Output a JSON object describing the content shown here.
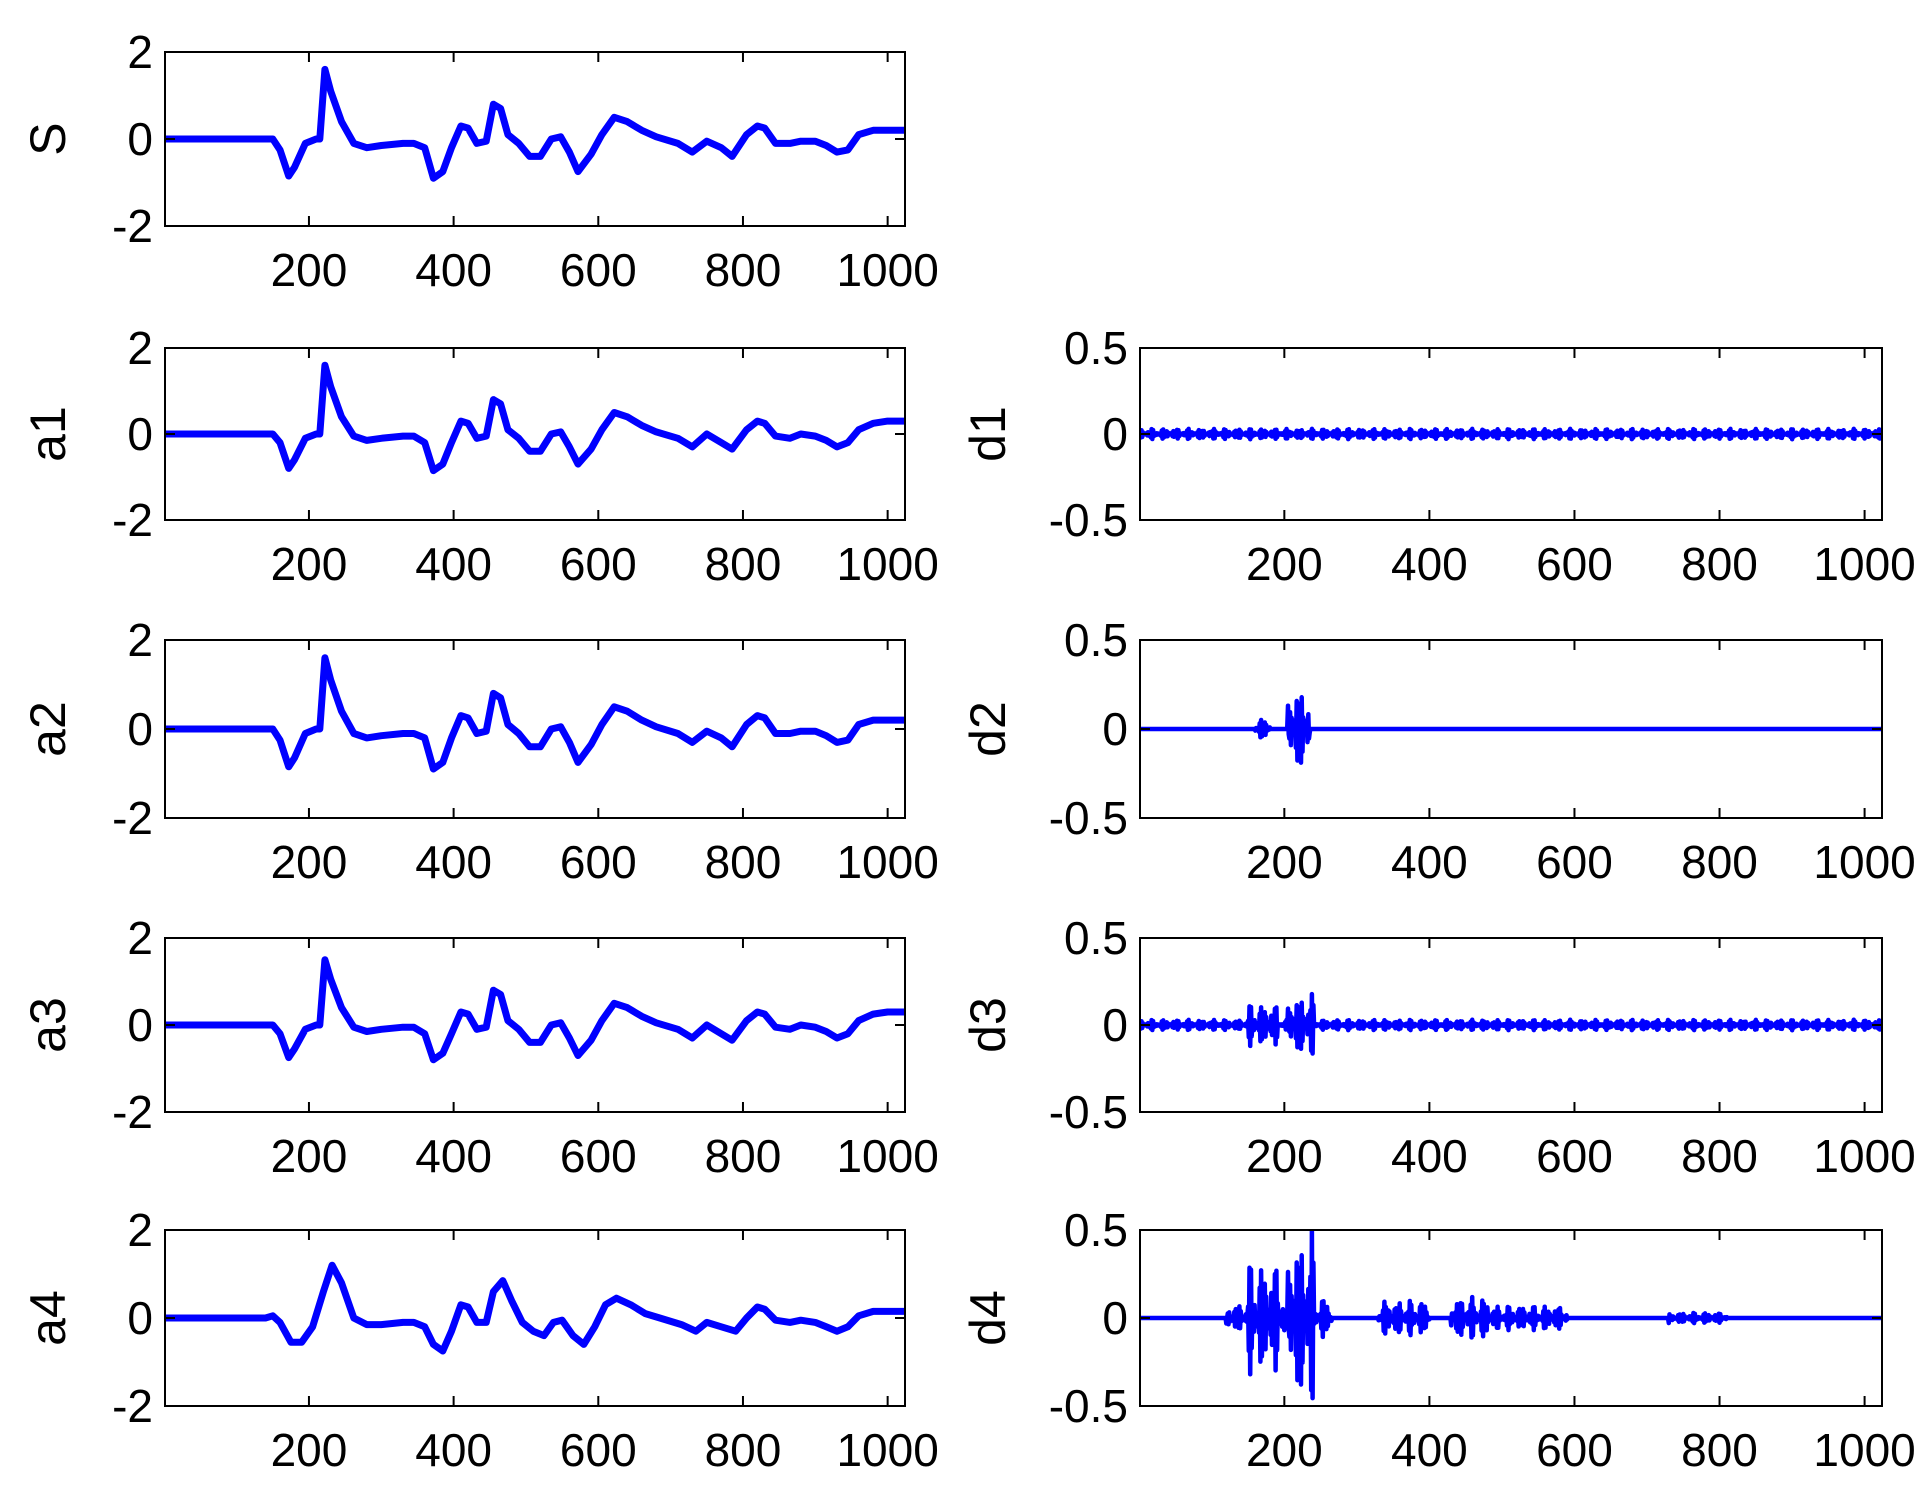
{
  "colors": {
    "line": "#0000ff",
    "axes": "#000000",
    "background": "#ffffff"
  },
  "chart_data": [
    {
      "id": "s",
      "type": "line",
      "ylabel": "S",
      "xlim": [
        1,
        1024
      ],
      "ylim": [
        -2,
        2
      ],
      "yticks": [
        "2",
        "0",
        "-2"
      ],
      "xticks": [
        "200",
        "400",
        "600",
        "800",
        "1000"
      ],
      "x": [
        1,
        140,
        150,
        160,
        172,
        180,
        195,
        210,
        215,
        222,
        230,
        245,
        262,
        280,
        300,
        330,
        345,
        360,
        372,
        385,
        397,
        410,
        420,
        432,
        445,
        455,
        465,
        475,
        490,
        505,
        520,
        535,
        548,
        560,
        572,
        590,
        605,
        622,
        640,
        660,
        680,
        710,
        730,
        750,
        770,
        785,
        805,
        820,
        830,
        845,
        865,
        880,
        900,
        915,
        930,
        945,
        960,
        980,
        1000,
        1024
      ],
      "values": [
        0,
        0,
        0,
        -0.25,
        -0.85,
        -0.65,
        -0.1,
        0,
        0,
        1.6,
        1.1,
        0.4,
        -0.1,
        -0.2,
        -0.15,
        -0.1,
        -0.1,
        -0.2,
        -0.9,
        -0.75,
        -0.2,
        0.3,
        0.25,
        -0.1,
        -0.05,
        0.8,
        0.7,
        0.1,
        -0.1,
        -0.4,
        -0.4,
        0,
        0.05,
        -0.3,
        -0.75,
        -0.35,
        0.1,
        0.5,
        0.4,
        0.2,
        0.05,
        -0.1,
        -0.3,
        -0.05,
        -0.2,
        -0.4,
        0.1,
        0.3,
        0.25,
        -0.1,
        -0.1,
        -0.05,
        -0.05,
        -0.15,
        -0.3,
        -0.25,
        0.1,
        0.2,
        0.2,
        0.2
      ]
    },
    {
      "id": "a1",
      "type": "line",
      "ylabel": "a1",
      "xlim": [
        1,
        1024
      ],
      "ylim": [
        -2,
        2
      ],
      "yticks": [
        "2",
        "0",
        "-2"
      ],
      "xticks": [
        "200",
        "400",
        "600",
        "800",
        "1000"
      ],
      "x": [
        1,
        140,
        150,
        160,
        172,
        180,
        195,
        210,
        215,
        222,
        230,
        245,
        262,
        280,
        300,
        330,
        345,
        360,
        372,
        385,
        397,
        410,
        420,
        432,
        445,
        455,
        465,
        475,
        490,
        505,
        520,
        535,
        548,
        560,
        572,
        590,
        605,
        622,
        640,
        660,
        680,
        710,
        730,
        750,
        770,
        785,
        805,
        820,
        830,
        845,
        865,
        880,
        900,
        915,
        930,
        945,
        960,
        980,
        1000,
        1024
      ],
      "values": [
        0,
        0,
        0,
        -0.2,
        -0.8,
        -0.6,
        -0.1,
        0,
        0,
        1.6,
        1.1,
        0.4,
        -0.05,
        -0.15,
        -0.1,
        -0.05,
        -0.05,
        -0.2,
        -0.85,
        -0.7,
        -0.2,
        0.3,
        0.25,
        -0.1,
        -0.05,
        0.8,
        0.7,
        0.1,
        -0.1,
        -0.4,
        -0.4,
        0,
        0.05,
        -0.3,
        -0.7,
        -0.35,
        0.1,
        0.5,
        0.4,
        0.2,
        0.05,
        -0.1,
        -0.3,
        0,
        -0.2,
        -0.35,
        0.1,
        0.3,
        0.25,
        -0.05,
        -0.1,
        0,
        -0.05,
        -0.15,
        -0.3,
        -0.2,
        0.1,
        0.25,
        0.3,
        0.3
      ]
    },
    {
      "id": "d1",
      "type": "line",
      "ylabel": "d1",
      "xlim": [
        1,
        1024
      ],
      "ylim": [
        -0.5,
        0.5
      ],
      "yticks": [
        "0.5",
        "0",
        "-0.5"
      ],
      "xticks": [
        "200",
        "400",
        "600",
        "800",
        "1000"
      ],
      "noise": [
        {
          "from": 1,
          "to": 1024,
          "amplitude": 0.03
        }
      ]
    },
    {
      "id": "a2",
      "type": "line",
      "ylabel": "a2",
      "xlim": [
        1,
        1024
      ],
      "ylim": [
        -2,
        2
      ],
      "yticks": [
        "2",
        "0",
        "-2"
      ],
      "xticks": [
        "200",
        "400",
        "600",
        "800",
        "1000"
      ],
      "x": [
        1,
        140,
        150,
        160,
        172,
        180,
        195,
        210,
        215,
        222,
        230,
        245,
        262,
        280,
        300,
        330,
        345,
        360,
        372,
        385,
        397,
        410,
        420,
        432,
        445,
        455,
        465,
        475,
        490,
        505,
        520,
        535,
        548,
        560,
        572,
        590,
        605,
        622,
        640,
        660,
        680,
        710,
        730,
        750,
        770,
        785,
        805,
        820,
        830,
        845,
        865,
        880,
        900,
        915,
        930,
        945,
        960,
        980,
        1000,
        1024
      ],
      "values": [
        0,
        0,
        0,
        -0.25,
        -0.85,
        -0.65,
        -0.1,
        0,
        0,
        1.6,
        1.1,
        0.4,
        -0.1,
        -0.2,
        -0.15,
        -0.1,
        -0.1,
        -0.2,
        -0.9,
        -0.75,
        -0.2,
        0.3,
        0.25,
        -0.1,
        -0.05,
        0.8,
        0.7,
        0.1,
        -0.1,
        -0.4,
        -0.4,
        0,
        0.05,
        -0.3,
        -0.75,
        -0.35,
        0.1,
        0.5,
        0.4,
        0.2,
        0.05,
        -0.1,
        -0.3,
        -0.05,
        -0.2,
        -0.4,
        0.1,
        0.3,
        0.25,
        -0.1,
        -0.1,
        -0.05,
        -0.05,
        -0.15,
        -0.3,
        -0.25,
        0.1,
        0.2,
        0.2,
        0.2
      ]
    },
    {
      "id": "d2",
      "type": "line",
      "ylabel": "d2",
      "xlim": [
        1,
        1024
      ],
      "ylim": [
        -0.5,
        0.5
      ],
      "yticks": [
        "0.5",
        "0",
        "-0.5"
      ],
      "xticks": [
        "200",
        "400",
        "600",
        "800",
        "1000"
      ],
      "noise": [
        {
          "from": 160,
          "to": 180,
          "amplitude": 0.06
        },
        {
          "from": 205,
          "to": 235,
          "amplitude": 0.25
        }
      ]
    },
    {
      "id": "a3",
      "type": "line",
      "ylabel": "a3",
      "xlim": [
        1,
        1024
      ],
      "ylim": [
        -2,
        2
      ],
      "yticks": [
        "2",
        "0",
        "-2"
      ],
      "xticks": [
        "200",
        "400",
        "600",
        "800",
        "1000"
      ],
      "x": [
        1,
        140,
        150,
        160,
        172,
        180,
        195,
        210,
        215,
        222,
        230,
        245,
        262,
        280,
        300,
        330,
        345,
        360,
        372,
        385,
        397,
        410,
        420,
        432,
        445,
        455,
        465,
        475,
        490,
        505,
        520,
        535,
        548,
        560,
        572,
        590,
        605,
        622,
        640,
        660,
        680,
        710,
        730,
        750,
        770,
        785,
        805,
        820,
        830,
        845,
        865,
        880,
        900,
        915,
        930,
        945,
        960,
        980,
        1000,
        1024
      ],
      "values": [
        0,
        0,
        0,
        -0.2,
        -0.75,
        -0.55,
        -0.1,
        0,
        0,
        1.5,
        1.05,
        0.4,
        -0.05,
        -0.15,
        -0.1,
        -0.05,
        -0.05,
        -0.2,
        -0.8,
        -0.65,
        -0.2,
        0.3,
        0.25,
        -0.1,
        -0.05,
        0.8,
        0.7,
        0.1,
        -0.1,
        -0.4,
        -0.4,
        0,
        0.05,
        -0.3,
        -0.7,
        -0.35,
        0.1,
        0.5,
        0.4,
        0.2,
        0.05,
        -0.1,
        -0.3,
        0,
        -0.2,
        -0.35,
        0.1,
        0.3,
        0.25,
        -0.05,
        -0.1,
        0,
        -0.05,
        -0.15,
        -0.3,
        -0.2,
        0.1,
        0.25,
        0.3,
        0.3
      ]
    },
    {
      "id": "d3",
      "type": "line",
      "ylabel": "d3",
      "xlim": [
        1,
        1024
      ],
      "ylim": [
        -0.5,
        0.5
      ],
      "yticks": [
        "0.5",
        "0",
        "-0.5"
      ],
      "xticks": [
        "200",
        "400",
        "600",
        "800",
        "1000"
      ],
      "noise": [
        {
          "from": 1,
          "to": 1024,
          "amplitude": 0.03
        },
        {
          "from": 150,
          "to": 190,
          "amplitude": 0.12
        },
        {
          "from": 205,
          "to": 240,
          "amplitude": 0.18
        }
      ]
    },
    {
      "id": "a4",
      "type": "line",
      "ylabel": "a4",
      "xlim": [
        1,
        1024
      ],
      "ylim": [
        -2,
        2
      ],
      "yticks": [
        "2",
        "0",
        "-2"
      ],
      "xticks": [
        "200",
        "400",
        "600",
        "800",
        "1000"
      ],
      "x": [
        1,
        140,
        150,
        160,
        175,
        190,
        205,
        220,
        232,
        245,
        262,
        280,
        300,
        330,
        345,
        360,
        372,
        385,
        397,
        410,
        420,
        432,
        445,
        455,
        468,
        480,
        495,
        510,
        525,
        538,
        550,
        565,
        580,
        595,
        610,
        625,
        645,
        665,
        685,
        715,
        735,
        750,
        770,
        790,
        805,
        820,
        830,
        845,
        865,
        880,
        900,
        915,
        930,
        945,
        960,
        980,
        1000,
        1024
      ],
      "values": [
        0,
        0,
        0.05,
        -0.1,
        -0.55,
        -0.55,
        -0.2,
        0.6,
        1.2,
        0.8,
        0,
        -0.15,
        -0.15,
        -0.1,
        -0.1,
        -0.2,
        -0.6,
        -0.75,
        -0.3,
        0.3,
        0.25,
        -0.1,
        -0.1,
        0.6,
        0.85,
        0.4,
        -0.1,
        -0.3,
        -0.4,
        -0.1,
        -0.05,
        -0.4,
        -0.6,
        -0.2,
        0.3,
        0.45,
        0.3,
        0.1,
        0,
        -0.15,
        -0.3,
        -0.1,
        -0.2,
        -0.3,
        0,
        0.25,
        0.2,
        -0.05,
        -0.1,
        -0.05,
        -0.1,
        -0.2,
        -0.3,
        -0.2,
        0.05,
        0.15,
        0.15,
        0.15
      ]
    },
    {
      "id": "d4",
      "type": "line",
      "ylabel": "d4",
      "xlim": [
        1,
        1024
      ],
      "ylim": [
        -0.5,
        0.5
      ],
      "yticks": [
        "0.5",
        "0",
        "-0.5"
      ],
      "xticks": [
        "200",
        "400",
        "600",
        "800",
        "1000"
      ],
      "noise": [
        {
          "from": 120,
          "to": 150,
          "amplitude": 0.08
        },
        {
          "from": 150,
          "to": 200,
          "amplitude": 0.32
        },
        {
          "from": 205,
          "to": 240,
          "amplitude": 0.5
        },
        {
          "from": 240,
          "to": 265,
          "amplitude": 0.12
        },
        {
          "from": 330,
          "to": 400,
          "amplitude": 0.1
        },
        {
          "from": 430,
          "to": 480,
          "amplitude": 0.12
        },
        {
          "from": 480,
          "to": 590,
          "amplitude": 0.07
        },
        {
          "from": 730,
          "to": 810,
          "amplitude": 0.03
        }
      ]
    }
  ]
}
